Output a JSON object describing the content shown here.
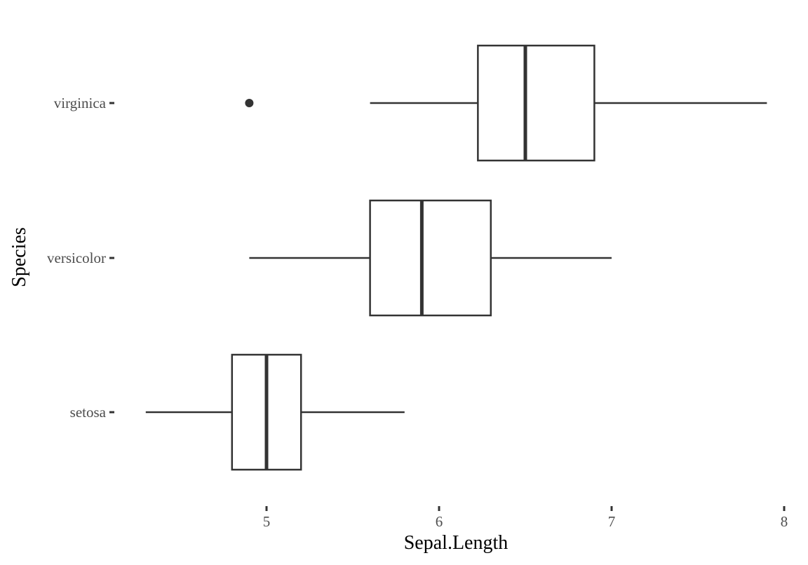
{
  "chart_data": {
    "type": "boxplot",
    "orientation": "horizontal",
    "xlabel": "Sepal.Length",
    "ylabel": "Species",
    "xlim": [
      4.2,
      8.05
    ],
    "x_ticks": [
      5,
      6,
      7,
      8
    ],
    "grid": false,
    "legend": "none",
    "categories": [
      "setosa",
      "versicolor",
      "virginica"
    ],
    "series": [
      {
        "category": "setosa",
        "min": 4.3,
        "q1": 4.8,
        "median": 5.0,
        "q3": 5.2,
        "max": 5.8,
        "outliers": []
      },
      {
        "category": "versicolor",
        "min": 4.9,
        "q1": 5.6,
        "median": 5.9,
        "q3": 6.3,
        "max": 7.0,
        "outliers": []
      },
      {
        "category": "virginica",
        "min": 5.6,
        "q1": 6.225,
        "median": 6.5,
        "q3": 6.9,
        "max": 7.9,
        "outliers": [
          4.9
        ]
      }
    ],
    "colors": {
      "stroke": "#333333",
      "fill": "#ffffff",
      "tick_text": "#4d4d4d",
      "title_text": "#000000"
    }
  }
}
